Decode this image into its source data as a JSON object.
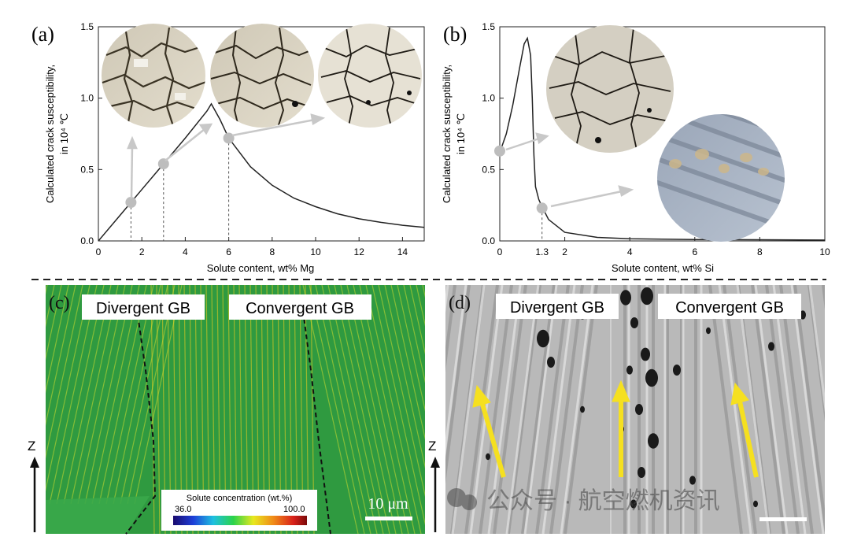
{
  "chart_data": [
    {
      "type": "line",
      "panel": "(a)",
      "xlabel": "Solute content, wt% Mg",
      "ylabel_line1": "Calculated crack susceptibility,",
      "ylabel_line2": "in 10⁴ ℃",
      "xlim": [
        0,
        15
      ],
      "ylim": [
        0,
        1.5
      ],
      "xticks": [
        0,
        2,
        4,
        6,
        8,
        10,
        12,
        14
      ],
      "yticks": [
        0.0,
        0.5,
        1.0,
        1.5
      ],
      "series": [
        {
          "x": [
            0,
            1,
            2,
            3,
            4,
            5,
            5.2,
            5.6,
            6,
            7,
            8,
            9,
            10,
            11,
            12,
            13,
            14,
            15
          ],
          "y": [
            0,
            0.18,
            0.36,
            0.54,
            0.72,
            0.91,
            0.96,
            0.85,
            0.72,
            0.52,
            0.39,
            0.3,
            0.24,
            0.19,
            0.155,
            0.13,
            0.11,
            0.095
          ]
        }
      ],
      "markers": [
        {
          "x": 1.5,
          "y": 0.27
        },
        {
          "x": 3.0,
          "y": 0.54
        },
        {
          "x": 6.0,
          "y": 0.72
        }
      ]
    },
    {
      "type": "line",
      "panel": "(b)",
      "xlabel": "Solute content, wt% Si",
      "ylabel_line1": "Calculated crack susceptibility,",
      "ylabel_line2": "in 10⁴ ℃",
      "xlim": [
        0,
        10
      ],
      "ylim": [
        0,
        1.5
      ],
      "xticks": [
        0,
        2,
        4,
        6,
        8,
        10
      ],
      "extra_xtick": "1.3",
      "yticks": [
        0.0,
        0.5,
        1.0,
        1.5
      ],
      "series": [
        {
          "x": [
            0,
            0.2,
            0.4,
            0.6,
            0.75,
            0.85,
            0.95,
            1.0,
            1.05,
            1.1,
            1.2,
            1.3,
            1.5,
            2,
            3,
            4,
            6,
            8,
            10
          ],
          "y": [
            0.62,
            0.75,
            0.95,
            1.2,
            1.38,
            1.42,
            1.3,
            1.0,
            0.6,
            0.38,
            0.29,
            0.24,
            0.15,
            0.06,
            0.025,
            0.015,
            0.01,
            0.008,
            0.006
          ]
        }
      ],
      "markers": [
        {
          "x": 0.0,
          "y": 0.63
        },
        {
          "x": 1.3,
          "y": 0.23
        }
      ]
    }
  ],
  "panels": {
    "a": "(a)",
    "b": "(b)",
    "c": "(c)",
    "d": "(d)"
  },
  "panel_c": {
    "label_divergent": "Divergent GB",
    "label_convergent": "Convergent GB",
    "axis_label": "Z",
    "colorbar_title": "Solute concentration (wt.%)",
    "colorbar_min": "36.0",
    "colorbar_max": "100.0",
    "scalebar": "10 μm"
  },
  "panel_d": {
    "label_divergent": "Divergent GB",
    "label_convergent": "Convergent GB",
    "axis_label": "Z",
    "watermark": "公众号 · 航空燃机资讯"
  },
  "colors": {
    "green_bg": "#2f9a40",
    "arrow_yellow": "#f5e020",
    "marker_gray": "#bdbdbd"
  }
}
